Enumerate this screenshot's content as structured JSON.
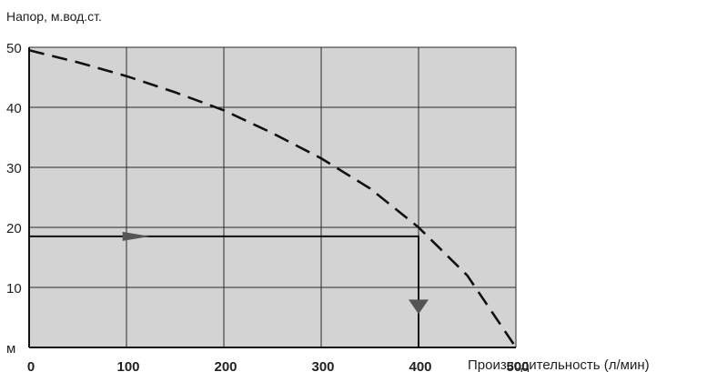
{
  "chart_data": {
    "type": "line",
    "title": "",
    "ylabel": "Напор, м.вод.ст.",
    "xlabel": "Производительность (л/мин)",
    "y_unit_tick": "м",
    "xlim": [
      0,
      500
    ],
    "ylim": [
      0,
      50
    ],
    "x_ticks": [
      "0",
      "100",
      "200",
      "300",
      "400",
      "500"
    ],
    "y_ticks": [
      "10",
      "20",
      "30",
      "40",
      "50"
    ],
    "grid": true,
    "plot_background": "#d3d3d3",
    "series": [
      {
        "style": "dashed",
        "color": "#111111",
        "x": [
          0,
          50,
          100,
          150,
          200,
          250,
          300,
          350,
          400,
          450,
          500
        ],
        "y": [
          49.5,
          47.5,
          45.2,
          42.5,
          39.5,
          35.7,
          31.5,
          26.5,
          20.0,
          12.0,
          0.0
        ]
      }
    ],
    "annotations": [
      {
        "kind": "arrow-path",
        "color": "#111111",
        "arrow_color": "#555555",
        "description_points": [
          [
            0,
            18.5
          ],
          [
            400,
            18.5
          ],
          [
            400,
            0
          ]
        ]
      }
    ]
  }
}
